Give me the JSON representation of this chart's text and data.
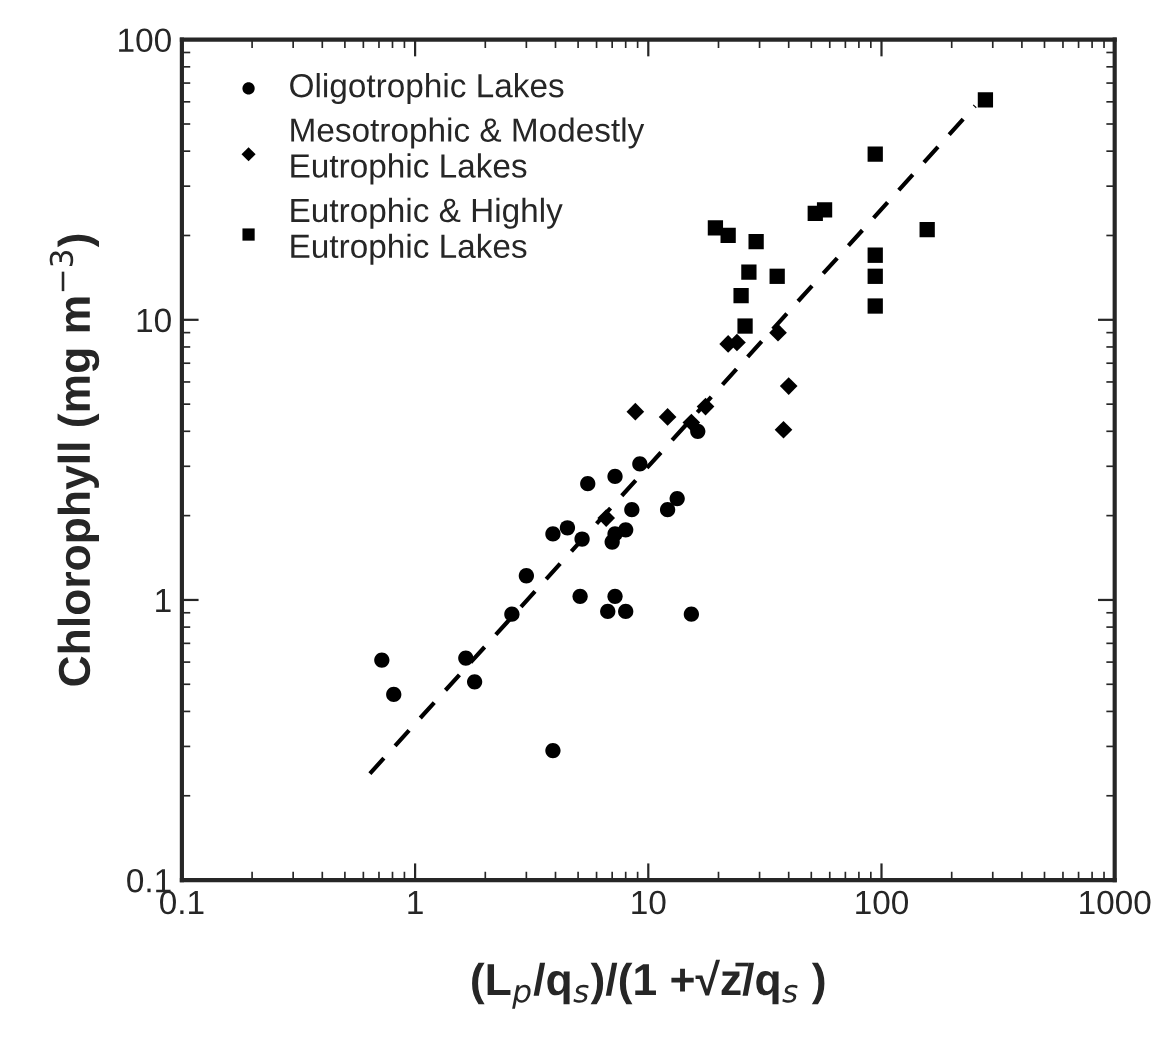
{
  "chart_data": {
    "type": "scatter",
    "xlabel": "(L$_{p}$/q$_{s}$)/(1 +√z̄/q$_{s}$ )",
    "ylabel": "Chlorophyll (mg m$^{−3}$)",
    "log": "xy",
    "xlim": [
      0.1,
      1000
    ],
    "ylim": [
      0.1,
      100
    ],
    "xticks": [
      0.1,
      1,
      10,
      100,
      1000
    ],
    "yticks": [
      0.1,
      1,
      10,
      100
    ],
    "legend": "top left",
    "series": [
      {
        "name": "Oligotrophic Lakes",
        "color": "#000000",
        "marker": "circle",
        "x": [
          0.72,
          0.81,
          1.65,
          1.8,
          2.6,
          3.0,
          3.9,
          3.9,
          4.5,
          5.1,
          5.2,
          5.1,
          5.5,
          7.2,
          7.2,
          7.0,
          7.2,
          6.7,
          8.0,
          8.0,
          8.5,
          9.2,
          12.1,
          13.3,
          15.3,
          16.3
        ],
        "values": [
          0.61,
          0.46,
          0.62,
          0.51,
          0.89,
          1.22,
          0.29,
          1.72,
          1.81,
          null,
          1.65,
          1.03,
          2.6,
          2.76,
          1.72,
          1.61,
          1.03,
          0.91,
          1.78,
          0.91,
          2.1,
          3.06,
          2.1,
          2.3,
          0.89,
          4.0
        ]
      },
      {
        "name": "Mesotrophic & Modestly\nEutrophic Lakes",
        "color": "#000000",
        "marker": "diamond",
        "x": [
          6.6,
          8.8,
          12.1,
          15.3,
          17.6,
          22,
          24,
          36,
          38,
          40
        ],
        "values": [
          1.96,
          4.7,
          4.5,
          4.3,
          4.9,
          8.2,
          8.3,
          9.0,
          4.05,
          5.8
        ]
      },
      {
        "name": "Eutrophic & Highly\nEutrophic Lakes",
        "color": "#000000",
        "marker": "square",
        "x": [
          19.4,
          22,
          25,
          26,
          27,
          29,
          35.7,
          52,
          57,
          94,
          94,
          94,
          94,
          157,
          279
        ],
        "values": [
          21.3,
          20,
          12.2,
          9.5,
          14.8,
          19,
          14.3,
          24,
          24.7,
          39,
          17,
          14.3,
          11.2,
          21,
          61
        ]
      },
      {
        "type": "line",
        "color": "#000000",
        "line_style": "dashed",
        "marker": "none",
        "x": [
          0.64,
          252
        ],
        "values": [
          0.24,
          58
        ]
      }
    ]
  }
}
